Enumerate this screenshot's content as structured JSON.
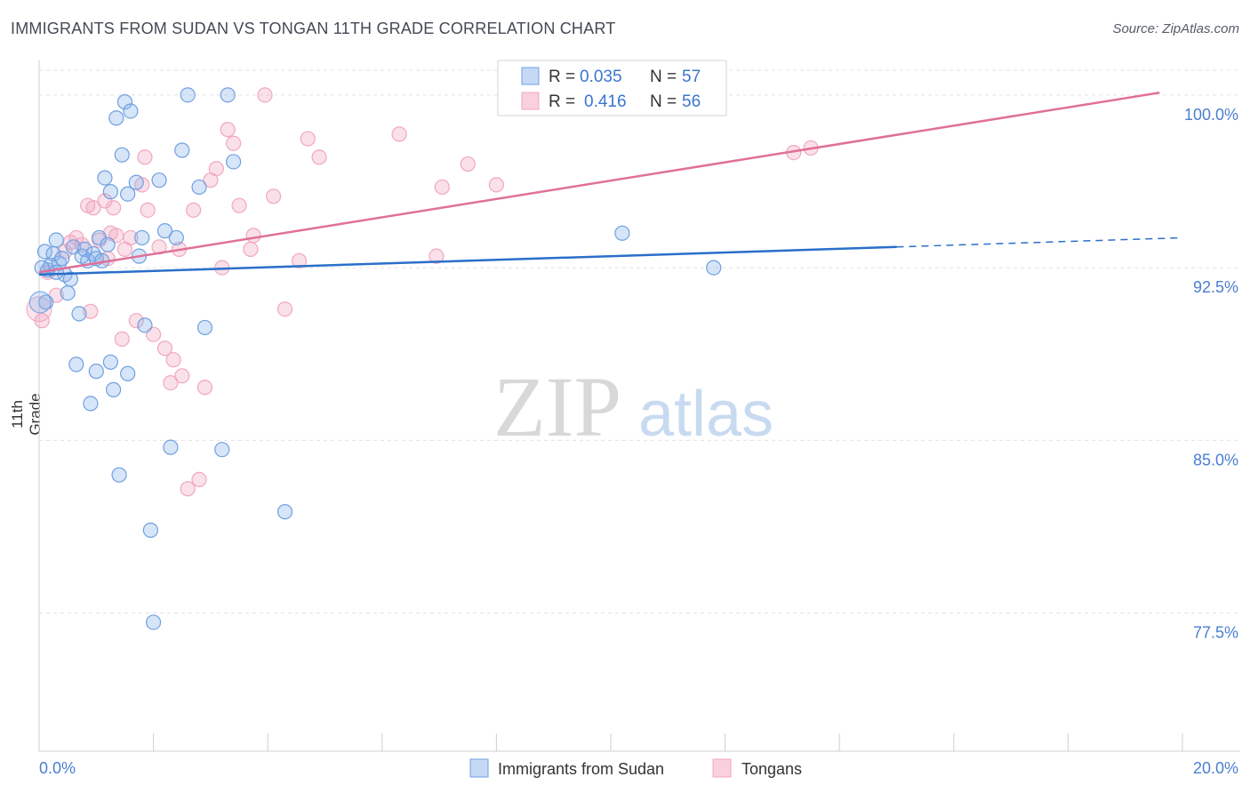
{
  "title": "IMMIGRANTS FROM SUDAN VS TONGAN 11TH GRADE CORRELATION CHART",
  "source": "Source: ZipAtlas.com",
  "watermark": {
    "zip": "ZIP",
    "atlas": "atlas"
  },
  "chart_data": {
    "type": "scatter",
    "title": "IMMIGRANTS FROM SUDAN VS TONGAN 11TH GRADE CORRELATION CHART",
    "xlabel": "",
    "ylabel": "11th Grade",
    "xlim": [
      0,
      20
    ],
    "ylim": [
      71.5,
      101.5
    ],
    "x_tick_labels": [
      "0.0%",
      "20.0%"
    ],
    "y_ticks": [
      77.5,
      85.0,
      92.5,
      100.0
    ],
    "y_tick_labels": [
      "77.5%",
      "85.0%",
      "92.5%",
      "100.0%"
    ],
    "grid": true,
    "legend_position": "top-center",
    "colors": {
      "sudan": "#6fa0e0",
      "sudan_line": "#2a6fc9",
      "tongans": "#f1a7bf",
      "tongans_line": "#e0709a",
      "tick_text": "#4a7fd0"
    },
    "stats": [
      {
        "r_label": "R = ",
        "r": "0.035",
        "n_label": "N = ",
        "n": "57"
      },
      {
        "r_label": "R = ",
        "r": "0.416",
        "n_label": "N = ",
        "n": "56"
      }
    ],
    "series": [
      {
        "name": "Immigrants from Sudan",
        "trend": {
          "x0": 0.0,
          "y0": 92.2,
          "x1": 15.0,
          "y1": 93.4,
          "dash_to_x": 20.0,
          "dash_to_y": 93.8
        },
        "points": [
          [
            0.1,
            93.2
          ],
          [
            0.15,
            92.4
          ],
          [
            0.2,
            92.6
          ],
          [
            0.25,
            93.1
          ],
          [
            0.3,
            93.7
          ],
          [
            0.35,
            92.7
          ],
          [
            0.4,
            92.9
          ],
          [
            0.45,
            92.2
          ],
          [
            0.5,
            91.4
          ],
          [
            0.55,
            92.0
          ],
          [
            0.6,
            93.4
          ],
          [
            0.7,
            90.5
          ],
          [
            0.75,
            93.0
          ],
          [
            0.8,
            93.3
          ],
          [
            0.85,
            92.8
          ],
          [
            0.95,
            93.1
          ],
          [
            1.0,
            92.9
          ],
          [
            1.05,
            93.8
          ],
          [
            1.1,
            92.8
          ],
          [
            1.15,
            96.4
          ],
          [
            1.2,
            93.5
          ],
          [
            1.25,
            95.8
          ],
          [
            1.3,
            87.2
          ],
          [
            1.35,
            99.0
          ],
          [
            1.4,
            83.5
          ],
          [
            1.45,
            97.4
          ],
          [
            1.5,
            99.7
          ],
          [
            1.55,
            95.7
          ],
          [
            1.6,
            99.3
          ],
          [
            1.7,
            96.2
          ],
          [
            1.75,
            93.0
          ],
          [
            1.8,
            93.8
          ],
          [
            1.85,
            90.0
          ],
          [
            1.95,
            81.1
          ],
          [
            2.0,
            77.1
          ],
          [
            2.1,
            96.3
          ],
          [
            2.2,
            94.1
          ],
          [
            2.3,
            84.7
          ],
          [
            2.4,
            93.8
          ],
          [
            2.5,
            97.6
          ],
          [
            2.6,
            100.0
          ],
          [
            2.8,
            96.0
          ],
          [
            2.9,
            89.9
          ],
          [
            3.2,
            84.6
          ],
          [
            3.3,
            100.0
          ],
          [
            3.4,
            97.1
          ],
          [
            4.3,
            81.9
          ],
          [
            0.05,
            92.5
          ],
          [
            0.12,
            91.0
          ],
          [
            0.9,
            86.6
          ],
          [
            1.0,
            88.0
          ],
          [
            1.25,
            88.4
          ],
          [
            1.55,
            87.9
          ],
          [
            0.65,
            88.3
          ],
          [
            0.3,
            92.3
          ],
          [
            10.2,
            94.0
          ],
          [
            11.8,
            92.5
          ]
        ]
      },
      {
        "name": "Tongans",
        "trend": {
          "x0": 0.0,
          "y0": 92.3,
          "x1": 19.6,
          "y1": 100.1
        },
        "points": [
          [
            0.05,
            90.2
          ],
          [
            0.15,
            92.3
          ],
          [
            0.3,
            91.3
          ],
          [
            0.45,
            93.2
          ],
          [
            0.55,
            93.6
          ],
          [
            0.65,
            93.8
          ],
          [
            0.75,
            93.5
          ],
          [
            0.85,
            95.2
          ],
          [
            0.9,
            90.6
          ],
          [
            0.95,
            95.1
          ],
          [
            1.05,
            93.7
          ],
          [
            1.15,
            95.4
          ],
          [
            1.25,
            94.0
          ],
          [
            1.3,
            95.1
          ],
          [
            1.35,
            93.9
          ],
          [
            1.45,
            89.4
          ],
          [
            1.5,
            93.3
          ],
          [
            1.6,
            93.8
          ],
          [
            1.7,
            90.2
          ],
          [
            1.8,
            96.1
          ],
          [
            1.85,
            97.3
          ],
          [
            1.9,
            95.0
          ],
          [
            2.0,
            89.6
          ],
          [
            2.1,
            93.4
          ],
          [
            2.2,
            89.0
          ],
          [
            2.3,
            87.5
          ],
          [
            2.35,
            88.5
          ],
          [
            2.45,
            93.3
          ],
          [
            2.5,
            87.8
          ],
          [
            2.6,
            82.9
          ],
          [
            2.7,
            95.0
          ],
          [
            2.8,
            83.3
          ],
          [
            2.9,
            87.3
          ],
          [
            3.0,
            96.3
          ],
          [
            3.1,
            96.8
          ],
          [
            3.2,
            92.5
          ],
          [
            3.3,
            98.5
          ],
          [
            3.4,
            97.9
          ],
          [
            3.5,
            95.2
          ],
          [
            3.7,
            93.3
          ],
          [
            3.75,
            93.9
          ],
          [
            3.95,
            100.0
          ],
          [
            4.1,
            95.6
          ],
          [
            4.3,
            90.7
          ],
          [
            4.55,
            92.8
          ],
          [
            4.7,
            98.1
          ],
          [
            4.9,
            97.3
          ],
          [
            6.3,
            98.3
          ],
          [
            6.95,
            93.0
          ],
          [
            7.05,
            96.0
          ],
          [
            7.5,
            97.0
          ],
          [
            8.0,
            96.1
          ],
          [
            8.9,
            99.5
          ],
          [
            13.2,
            97.5
          ],
          [
            13.5,
            97.7
          ],
          [
            1.2,
            92.9
          ]
        ]
      }
    ]
  },
  "legend": {
    "items": [
      "Immigrants from Sudan",
      "Tongans"
    ]
  }
}
